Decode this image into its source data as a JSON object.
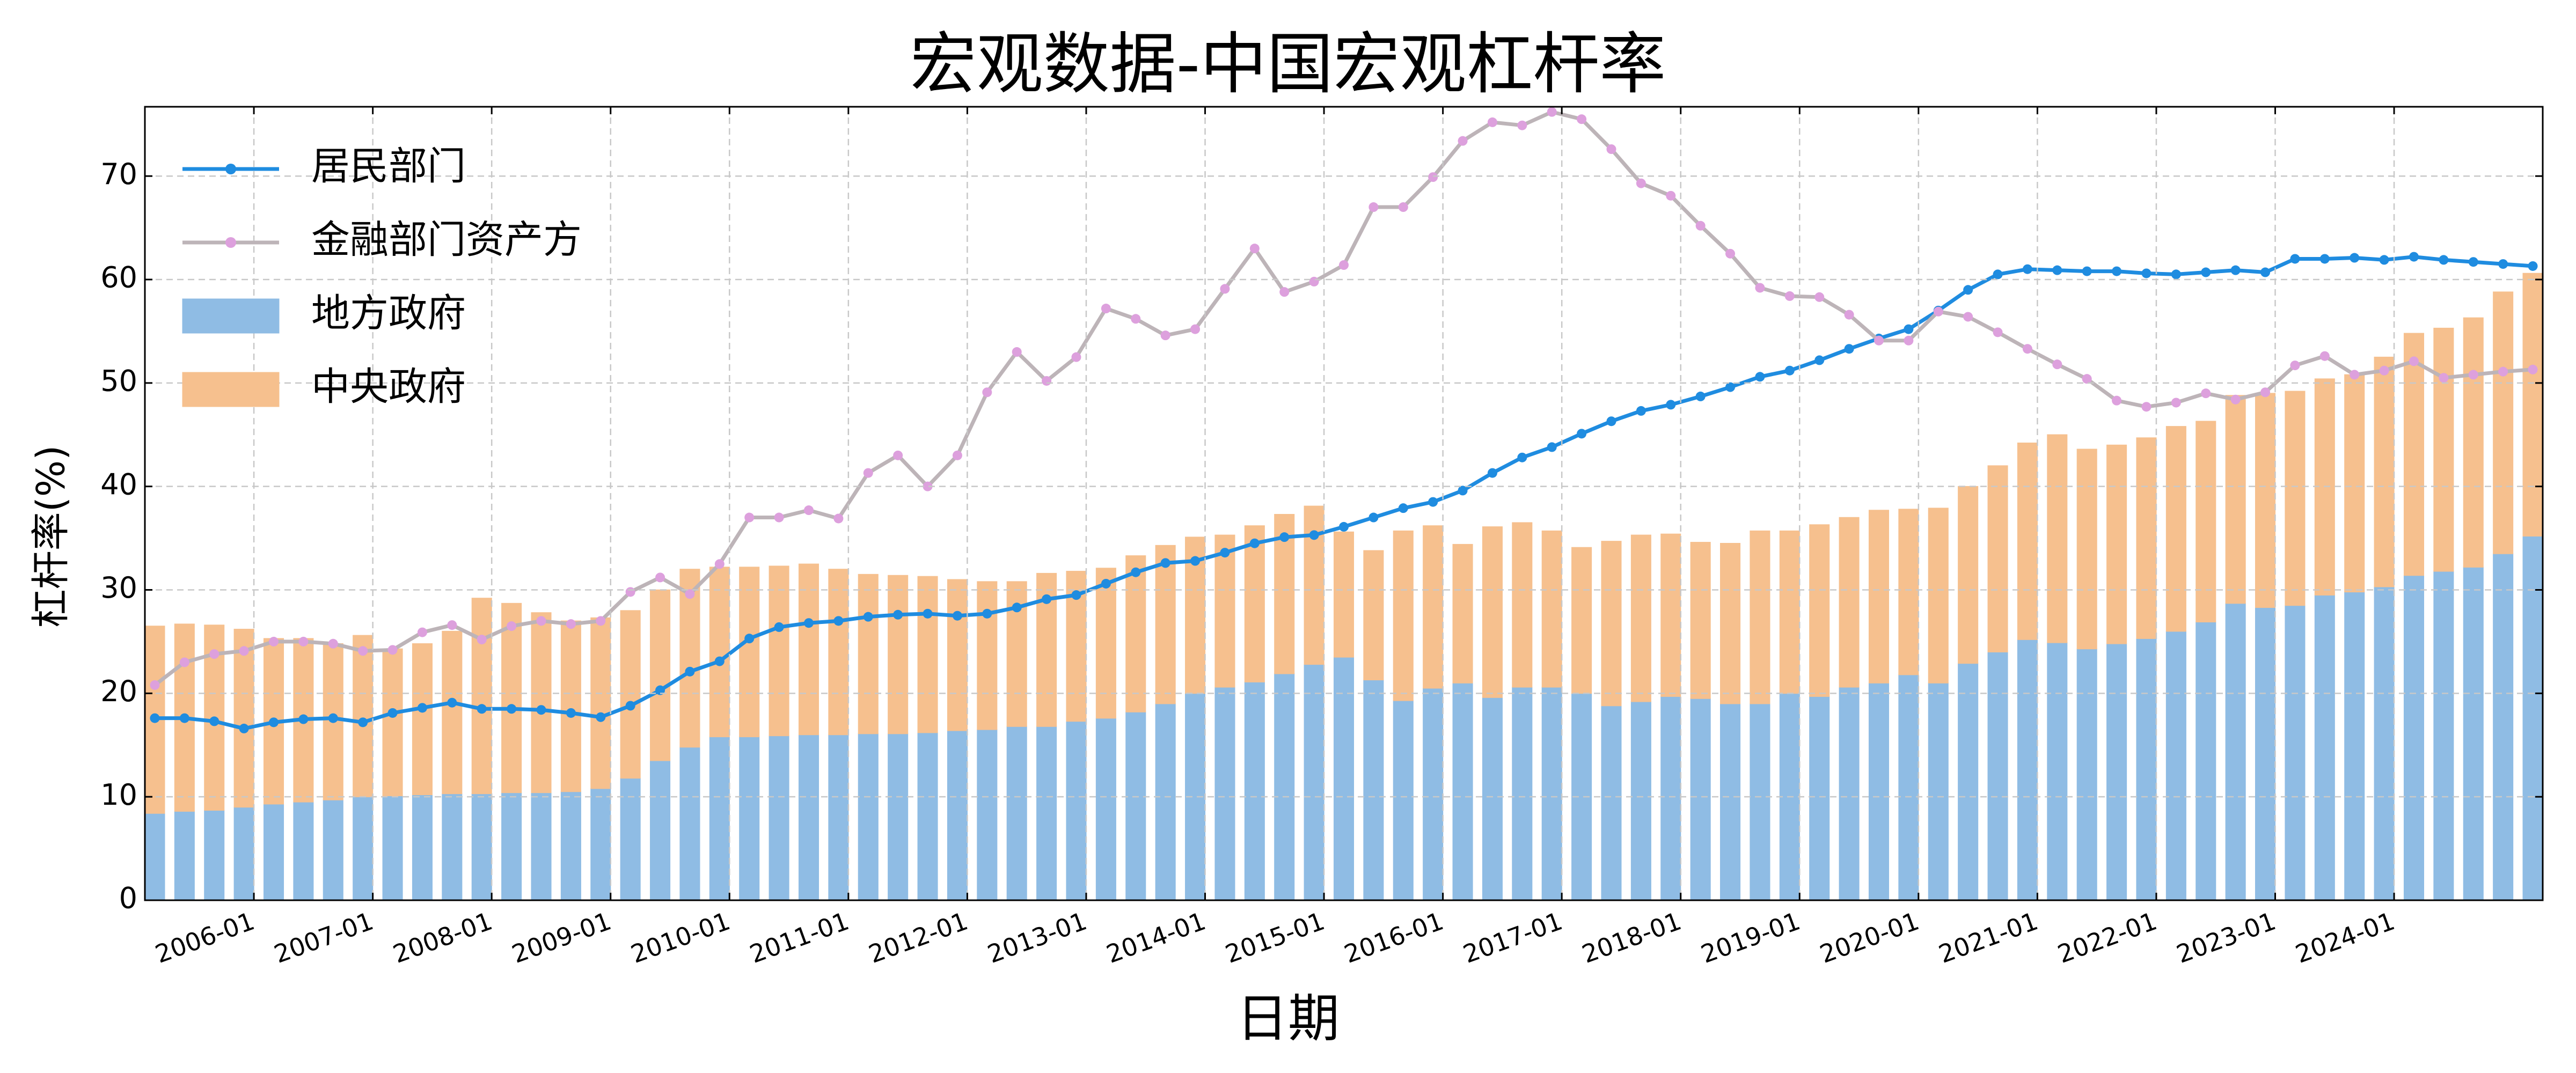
{
  "chart_data": {
    "type": "combo",
    "title": "宏观数据-中国宏观杠杆率",
    "xlabel": "日期",
    "ylabel": "杠杆率(%)",
    "stacked": true,
    "grid": true,
    "legend": "upper left",
    "x": [
      "2005-03",
      "2005-06",
      "2005-09",
      "2005-12",
      "2006-03",
      "2006-06",
      "2006-09",
      "2006-12",
      "2007-03",
      "2007-06",
      "2007-09",
      "2007-12",
      "2008-03",
      "2008-06",
      "2008-09",
      "2008-12",
      "2009-03",
      "2009-06",
      "2009-09",
      "2009-12",
      "2010-03",
      "2010-06",
      "2010-09",
      "2010-12",
      "2011-03",
      "2011-06",
      "2011-09",
      "2011-12",
      "2012-03",
      "2012-06",
      "2012-09",
      "2012-12",
      "2013-03",
      "2013-06",
      "2013-09",
      "2013-12",
      "2014-03",
      "2014-06",
      "2014-09",
      "2014-12",
      "2015-03",
      "2015-06",
      "2015-09",
      "2015-12",
      "2016-03",
      "2016-06",
      "2016-09",
      "2016-12",
      "2017-03",
      "2017-06",
      "2017-09",
      "2017-12",
      "2018-03",
      "2018-06",
      "2018-09",
      "2018-12",
      "2019-03",
      "2019-06",
      "2019-09",
      "2019-12",
      "2020-03",
      "2020-06",
      "2020-09",
      "2020-12",
      "2021-03",
      "2021-06",
      "2021-09",
      "2021-12",
      "2022-03",
      "2022-06",
      "2022-09",
      "2022-12",
      "2023-03",
      "2023-06",
      "2023-09",
      "2023-12",
      "2024-03",
      "2024-06",
      "2024-09",
      "2024-12",
      "2025-03"
    ],
    "xlim": [
      "2005-02",
      "2025-04"
    ],
    "xticks": [
      "2006-01",
      "2007-01",
      "2008-01",
      "2009-01",
      "2010-01",
      "2011-01",
      "2012-01",
      "2013-01",
      "2014-01",
      "2015-01",
      "2016-01",
      "2017-01",
      "2018-01",
      "2019-01",
      "2020-01",
      "2021-01",
      "2022-01",
      "2023-01",
      "2024-01"
    ],
    "ylim": [
      0,
      76.7
    ],
    "yticks": [
      0,
      10,
      20,
      30,
      40,
      50,
      60,
      70
    ],
    "series": [
      {
        "name": "居民部门",
        "type": "line",
        "color": "#1f8ce0",
        "values": [
          17.6,
          17.6,
          17.3,
          16.6,
          17.2,
          17.5,
          17.6,
          17.2,
          18.1,
          18.6,
          19.1,
          18.5,
          18.5,
          18.4,
          18.1,
          17.7,
          18.8,
          20.3,
          22.1,
          23.1,
          25.3,
          26.4,
          26.8,
          27.0,
          27.4,
          27.6,
          27.7,
          27.5,
          27.7,
          28.3,
          29.1,
          29.5,
          30.6,
          31.7,
          32.6,
          32.8,
          33.6,
          34.5,
          35.1,
          35.3,
          36.1,
          37.0,
          37.9,
          38.5,
          39.6,
          41.3,
          42.8,
          43.8,
          45.1,
          46.3,
          47.3,
          47.9,
          48.7,
          49.6,
          50.6,
          51.2,
          52.2,
          53.3,
          54.3,
          55.2,
          57.0,
          59.0,
          60.5,
          61.0,
          60.9,
          60.8,
          60.8,
          60.6,
          60.5,
          60.7,
          60.9,
          60.7,
          62.0,
          62.0,
          62.1,
          61.9,
          62.2,
          61.9,
          61.7,
          61.5,
          61.3
        ]
      },
      {
        "name": "金融部门资产方",
        "type": "line",
        "color": "#dda0dd",
        "line_color": "#bdb4b8",
        "values": [
          20.8,
          23.0,
          23.8,
          24.1,
          25.0,
          25.0,
          24.8,
          24.1,
          24.2,
          25.9,
          26.6,
          25.2,
          26.5,
          27.0,
          26.7,
          27.0,
          29.8,
          31.2,
          29.6,
          32.5,
          37.0,
          37.0,
          37.7,
          36.9,
          41.3,
          43.0,
          40.0,
          43.0,
          49.1,
          53.0,
          50.2,
          52.5,
          57.2,
          56.2,
          54.6,
          55.2,
          59.1,
          63.0,
          58.8,
          59.8,
          61.4,
          67.0,
          67.0,
          69.9,
          73.4,
          75.2,
          74.9,
          76.2,
          75.5,
          72.6,
          69.3,
          68.1,
          65.2,
          62.5,
          59.2,
          58.4,
          58.3,
          56.6,
          54.1,
          54.1,
          56.9,
          56.4,
          54.9,
          53.3,
          51.8,
          50.4,
          48.3,
          47.7,
          48.1,
          49.0,
          48.4,
          49.1,
          51.7,
          52.6,
          50.8,
          51.2,
          52.1,
          50.5,
          50.8,
          51.1,
          51.3
        ]
      },
      {
        "name": "地方政府",
        "type": "bar",
        "color": "#8fbce4",
        "values": [
          8.4,
          8.6,
          8.7,
          9.0,
          9.3,
          9.5,
          9.7,
          10.0,
          10.1,
          10.2,
          10.3,
          10.3,
          10.4,
          10.4,
          10.5,
          10.8,
          11.8,
          13.5,
          14.8,
          15.8,
          15.8,
          15.9,
          16.0,
          16.0,
          16.1,
          16.1,
          16.2,
          16.4,
          16.5,
          16.8,
          16.8,
          17.3,
          17.6,
          18.2,
          19.0,
          20.0,
          20.6,
          21.1,
          21.9,
          22.8,
          23.5,
          21.3,
          19.3,
          20.5,
          21.0,
          19.6,
          20.6,
          20.6,
          20.0,
          18.8,
          19.2,
          19.7,
          19.5,
          19.0,
          19.0,
          20.0,
          19.7,
          20.6,
          21.0,
          21.8,
          21.0,
          22.9,
          24.0,
          25.2,
          24.9,
          24.3,
          24.8,
          25.3,
          26.0,
          26.9,
          28.7,
          28.3,
          28.5,
          29.5,
          29.8,
          30.3,
          31.4,
          31.8,
          32.2,
          33.5,
          35.2
        ]
      },
      {
        "name": "中央政府",
        "type": "bar",
        "color": "#f6c08e",
        "values": [
          18.1,
          18.1,
          17.9,
          17.2,
          16.0,
          15.8,
          15.1,
          15.6,
          14.2,
          14.6,
          15.7,
          18.9,
          18.3,
          17.4,
          16.5,
          16.5,
          16.2,
          16.5,
          17.2,
          16.4,
          16.4,
          16.4,
          16.5,
          16.0,
          15.4,
          15.3,
          15.1,
          14.6,
          14.3,
          14.0,
          14.8,
          14.5,
          14.5,
          15.1,
          15.3,
          15.1,
          14.7,
          15.1,
          15.4,
          15.3,
          12.1,
          12.5,
          16.4,
          15.7,
          13.4,
          16.5,
          15.9,
          15.1,
          14.1,
          15.9,
          16.1,
          15.7,
          15.1,
          15.5,
          16.7,
          15.7,
          16.6,
          16.4,
          16.7,
          16.0,
          16.9,
          17.1,
          18.0,
          19.0,
          20.1,
          19.3,
          19.2,
          19.4,
          19.8,
          19.4,
          20.1,
          20.7,
          20.7,
          20.9,
          21.0,
          22.2,
          23.4,
          23.5,
          24.1,
          25.3,
          25.4
        ]
      }
    ]
  }
}
